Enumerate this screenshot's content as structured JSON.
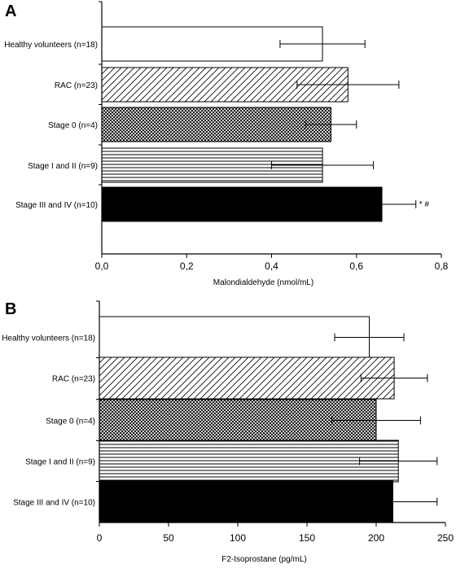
{
  "chart_data": [
    {
      "type": "bar",
      "orientation": "horizontal",
      "panel_label": "A",
      "categories": [
        "Healthy volunteers (n=18)",
        "RAC (n=23)",
        "Stage 0 (n=4)",
        "Stage I and II (n=9)",
        "Stage III and IV (n=10)"
      ],
      "values": [
        0.52,
        0.58,
        0.54,
        0.52,
        0.66
      ],
      "errors": [
        0.1,
        0.12,
        0.06,
        0.12,
        0.08
      ],
      "fills": [
        "none",
        "diagonal-hatch",
        "crosshatch",
        "horizontal-lines",
        "solid-black"
      ],
      "annotations": [
        {
          "category": "Stage III and IV (n=10)",
          "text": "* #"
        }
      ],
      "xlabel": "Malondialdehyde (nmol/mL)",
      "xlim": [
        0.0,
        0.8
      ],
      "xticks": [
        0.0,
        0.2,
        0.4,
        0.6,
        0.8
      ],
      "xtick_labels": [
        "0,0",
        "0,2",
        "0,4",
        "0,6",
        "0,8"
      ],
      "grid": false
    },
    {
      "type": "bar",
      "orientation": "horizontal",
      "panel_label": "B",
      "categories": [
        "Healthy volunteers (n=18)",
        "RAC (n=23)",
        "Stage 0 (n=4)",
        "Stage I and II (n=9)",
        "Stage III and IV (n=10)"
      ],
      "values": [
        195,
        213,
        200,
        216,
        212
      ],
      "errors": [
        25,
        24,
        32,
        28,
        32
      ],
      "fills": [
        "none",
        "diagonal-hatch",
        "crosshatch",
        "horizontal-lines",
        "solid-black"
      ],
      "annotations": [],
      "xlabel": "F2-Isoprostane (pg/mL)",
      "xlim": [
        0,
        250
      ],
      "xticks": [
        0,
        50,
        100,
        150,
        200,
        250
      ],
      "xtick_labels": [
        "0",
        "50",
        "100",
        "150",
        "200",
        "250"
      ],
      "grid": false
    }
  ]
}
